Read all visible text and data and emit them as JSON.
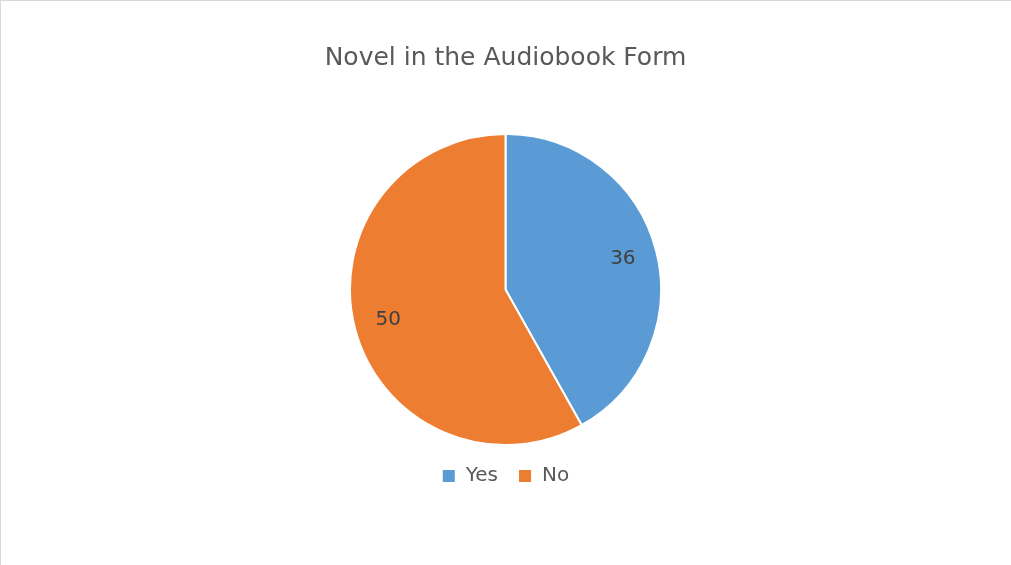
{
  "chart_data": {
    "type": "pie",
    "title": "Novel in the Audiobook Form",
    "categories": [
      "Yes",
      "No"
    ],
    "values": [
      36,
      50
    ],
    "colors": [
      "#5b9bd5",
      "#ed7d31"
    ],
    "data_labels": true,
    "legend": "bottom"
  }
}
